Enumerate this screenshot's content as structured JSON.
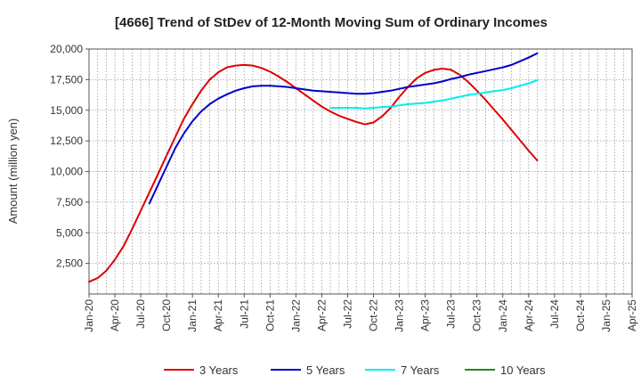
{
  "chart_data": {
    "type": "line",
    "title": "[4666]  Trend of StDev of 12-Month Moving Sum of Ordinary Incomes",
    "xlabel": "",
    "ylabel": "Amount (million yen)",
    "ylim": [
      0,
      20000
    ],
    "yticks": [
      2500,
      5000,
      7500,
      10000,
      12500,
      15000,
      17500,
      20000
    ],
    "ytick_labels": [
      "2,500",
      "5,000",
      "7,500",
      "10,000",
      "12,500",
      "15,000",
      "17,500",
      "20,000"
    ],
    "x_tick_labels": [
      "Jan-20",
      "Apr-20",
      "Jul-20",
      "Oct-20",
      "Jan-21",
      "Apr-21",
      "Jul-21",
      "Oct-21",
      "Jan-22",
      "Apr-22",
      "Jul-22",
      "Oct-22",
      "Jan-23",
      "Apr-23",
      "Jul-23",
      "Oct-23",
      "Jan-24",
      "Apr-24",
      "Jul-24",
      "Oct-24",
      "Jan-25",
      "Apr-25"
    ],
    "grid": true,
    "legend_position": "bottom",
    "series": [
      {
        "name": "3 Years",
        "color": "#dd0000",
        "points": [
          [
            0,
            1000
          ],
          [
            1,
            1300
          ],
          [
            2,
            1900
          ],
          [
            3,
            2800
          ],
          [
            4,
            3900
          ],
          [
            5,
            5300
          ],
          [
            6,
            6800
          ],
          [
            7,
            8300
          ],
          [
            8,
            9800
          ],
          [
            9,
            11300
          ],
          [
            10,
            12800
          ],
          [
            11,
            14300
          ],
          [
            12,
            15500
          ],
          [
            13,
            16600
          ],
          [
            14,
            17500
          ],
          [
            15,
            18100
          ],
          [
            16,
            18500
          ],
          [
            17,
            18650
          ],
          [
            18,
            18700
          ],
          [
            19,
            18650
          ],
          [
            20,
            18450
          ],
          [
            21,
            18150
          ],
          [
            22,
            17750
          ],
          [
            23,
            17300
          ],
          [
            24,
            16800
          ],
          [
            25,
            16300
          ],
          [
            26,
            15800
          ],
          [
            27,
            15300
          ],
          [
            28,
            14900
          ],
          [
            29,
            14550
          ],
          [
            30,
            14300
          ],
          [
            31,
            14050
          ],
          [
            32,
            13850
          ],
          [
            33,
            14000
          ],
          [
            34,
            14500
          ],
          [
            35,
            15200
          ],
          [
            36,
            16100
          ],
          [
            37,
            16900
          ],
          [
            38,
            17600
          ],
          [
            39,
            18050
          ],
          [
            40,
            18300
          ],
          [
            41,
            18400
          ],
          [
            42,
            18300
          ],
          [
            43,
            17900
          ],
          [
            44,
            17300
          ],
          [
            45,
            16600
          ],
          [
            46,
            15850
          ],
          [
            47,
            15050
          ],
          [
            48,
            14250
          ],
          [
            49,
            13400
          ],
          [
            50,
            12550
          ],
          [
            51,
            11700
          ],
          [
            52,
            10900
          ]
        ]
      },
      {
        "name": "5 Years",
        "color": "#0000cc",
        "points": [
          [
            7,
            7400
          ],
          [
            8,
            8900
          ],
          [
            9,
            10400
          ],
          [
            10,
            11900
          ],
          [
            11,
            13100
          ],
          [
            12,
            14100
          ],
          [
            13,
            14900
          ],
          [
            14,
            15500
          ],
          [
            15,
            15950
          ],
          [
            16,
            16300
          ],
          [
            17,
            16600
          ],
          [
            18,
            16800
          ],
          [
            19,
            16950
          ],
          [
            20,
            17000
          ],
          [
            21,
            17000
          ],
          [
            22,
            16950
          ],
          [
            23,
            16900
          ],
          [
            24,
            16800
          ],
          [
            25,
            16700
          ],
          [
            26,
            16600
          ],
          [
            27,
            16550
          ],
          [
            28,
            16500
          ],
          [
            29,
            16450
          ],
          [
            30,
            16400
          ],
          [
            31,
            16350
          ],
          [
            32,
            16350
          ],
          [
            33,
            16400
          ],
          [
            34,
            16500
          ],
          [
            35,
            16600
          ],
          [
            36,
            16750
          ],
          [
            37,
            16900
          ],
          [
            38,
            17000
          ],
          [
            39,
            17100
          ],
          [
            40,
            17200
          ],
          [
            41,
            17350
          ],
          [
            42,
            17550
          ],
          [
            43,
            17700
          ],
          [
            44,
            17900
          ],
          [
            45,
            18050
          ],
          [
            46,
            18200
          ],
          [
            47,
            18350
          ],
          [
            48,
            18500
          ],
          [
            49,
            18700
          ],
          [
            50,
            19000
          ],
          [
            51,
            19300
          ],
          [
            52,
            19650
          ]
        ]
      },
      {
        "name": "7 Years",
        "color": "#00eeee",
        "points": [
          [
            28,
            15200
          ],
          [
            29,
            15200
          ],
          [
            30,
            15200
          ],
          [
            31,
            15200
          ],
          [
            32,
            15150
          ],
          [
            33,
            15200
          ],
          [
            34,
            15250
          ],
          [
            35,
            15300
          ],
          [
            36,
            15400
          ],
          [
            37,
            15500
          ],
          [
            38,
            15550
          ],
          [
            39,
            15600
          ],
          [
            40,
            15700
          ],
          [
            41,
            15800
          ],
          [
            42,
            15950
          ],
          [
            43,
            16100
          ],
          [
            44,
            16250
          ],
          [
            45,
            16350
          ],
          [
            46,
            16450
          ],
          [
            47,
            16550
          ],
          [
            48,
            16650
          ],
          [
            49,
            16800
          ],
          [
            50,
            17000
          ],
          [
            51,
            17200
          ],
          [
            52,
            17450
          ]
        ]
      },
      {
        "name": "10 Years",
        "color": "#228b22",
        "points": []
      }
    ]
  }
}
